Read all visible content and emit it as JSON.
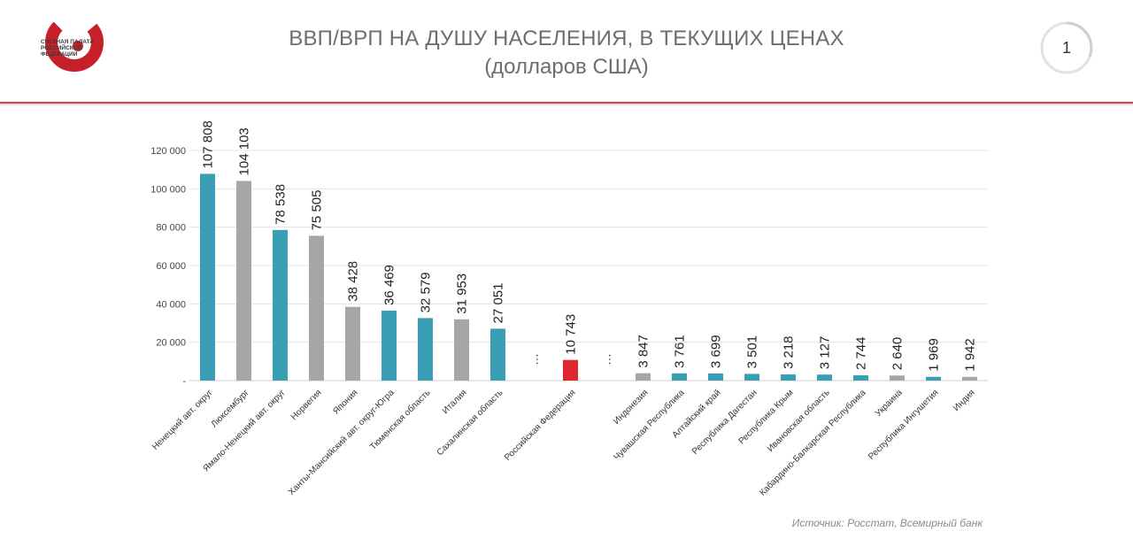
{
  "header": {
    "logo_text": "СЧЕТНАЯ ПАЛАТА РОССИЙСКОЙ ФЕДЕРАЦИИ",
    "title": "ВВП/ВРП НА ДУШУ НАСЕЛЕНИЯ, В ТЕКУЩИХ ЦЕНАХ",
    "subtitle": "(долларов США)",
    "page_number": "1"
  },
  "colors": {
    "accent": "#c8464c",
    "teal": "#3a9fb4",
    "gray": "#a6a6a6",
    "red": "#e0262e"
  },
  "chart_data": {
    "type": "bar",
    "title": "ВВП/ВРП НА ДУШУ НАСЕЛЕНИЯ, В ТЕКУЩИХ ЦЕНАХ",
    "subtitle": "(долларов США)",
    "xlabel": "",
    "ylabel": "",
    "ylim": [
      0,
      120000
    ],
    "yticks": [
      0,
      20000,
      40000,
      60000,
      80000,
      100000,
      120000
    ],
    "ytick_labels": [
      "-",
      "20 000",
      "40 000",
      "60 000",
      "80 000",
      "100 000",
      "120 000"
    ],
    "grid": true,
    "legend": "none",
    "gap_marker": "…",
    "categories": [
      "Ненецкий авт. округ",
      "Люксембург",
      "Ямало-Ненецкий авт. округ",
      "Норвегия",
      "Япония",
      "Ханты-Мансийский авт. округ-Югра",
      "Тюменская область",
      "Италия",
      "Сахалинская область",
      "",
      "Российская Федерация",
      "",
      "Индонезия",
      "Чувашская Республика",
      "Алтайский край",
      "Республика Дагестан",
      "Республика Крым",
      "Ивановская область",
      "Кабардино-Балкарская Республика",
      "Украина",
      "Республика Ингушетия",
      "Индия"
    ],
    "values": [
      107808,
      104103,
      78538,
      75505,
      38428,
      36469,
      32579,
      31953,
      27051,
      null,
      10743,
      null,
      3847,
      3761,
      3699,
      3501,
      3218,
      3127,
      2744,
      2640,
      1969,
      1942
    ],
    "value_labels": [
      "107 808",
      "104 103",
      "78 538",
      "75 505",
      "38 428",
      "36 469",
      "32 579",
      "31 953",
      "27 051",
      "…",
      "10 743",
      "…",
      "3 847",
      "3 761",
      "3 699",
      "3 501",
      "3 218",
      "3 127",
      "2 744",
      "2 640",
      "1 969",
      "1 942"
    ],
    "bar_colors": [
      "teal",
      "gray",
      "teal",
      "gray",
      "gray",
      "teal",
      "teal",
      "gray",
      "teal",
      "",
      "red",
      "",
      "gray",
      "teal",
      "teal",
      "teal",
      "teal",
      "teal",
      "teal",
      "gray",
      "teal",
      "gray"
    ]
  },
  "source": "Источник: Росстат, Всемирный банк"
}
